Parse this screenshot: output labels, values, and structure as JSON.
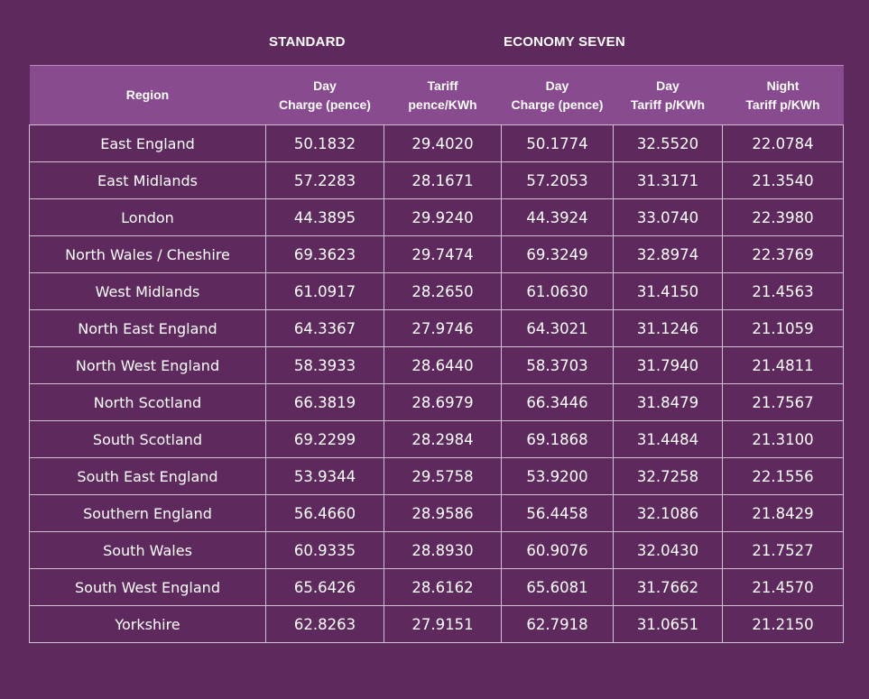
{
  "groups": {
    "standard": "STANDARD",
    "economy_seven": "ECONOMY SEVEN"
  },
  "headers": {
    "region": "Region",
    "std_day": [
      "Day",
      "Charge (pence)"
    ],
    "std_tariff": [
      "Tariff",
      "pence/KWh"
    ],
    "e7_day": [
      "Day",
      "Charge (pence)"
    ],
    "e7_day_tariff": [
      "Day",
      "Tariff p/KWh"
    ],
    "e7_night_tariff": [
      "Night",
      "Tariff p/KWh"
    ]
  },
  "rows": [
    [
      "East England",
      "50.1832",
      "29.4020",
      "50.1774",
      "32.5520",
      "22.0784"
    ],
    [
      "East Midlands",
      "57.2283",
      "28.1671",
      "57.2053",
      "31.3171",
      "21.3540"
    ],
    [
      "London",
      "44.3895",
      "29.9240",
      "44.3924",
      "33.0740",
      "22.3980"
    ],
    [
      "North Wales / Cheshire",
      "69.3623",
      "29.7474",
      "69.3249",
      "32.8974",
      "22.3769"
    ],
    [
      "West Midlands",
      "61.0917",
      "28.2650",
      "61.0630",
      "31.4150",
      "21.4563"
    ],
    [
      "North East England",
      "64.3367",
      "27.9746",
      "64.3021",
      "31.1246",
      "21.1059"
    ],
    [
      "North West England",
      "58.3933",
      "28.6440",
      "58.3703",
      "31.7940",
      "21.4811"
    ],
    [
      "North Scotland",
      "66.3819",
      "28.6979",
      "66.3446",
      "31.8479",
      "21.7567"
    ],
    [
      "South Scotland",
      "69.2299",
      "28.2984",
      "69.1868",
      "31.4484",
      "21.3100"
    ],
    [
      "South East England",
      "53.9344",
      "29.5758",
      "53.9200",
      "32.7258",
      "22.1556"
    ],
    [
      "Southern England",
      "56.4660",
      "28.9586",
      "56.4458",
      "32.1086",
      "21.8429"
    ],
    [
      "South Wales",
      "60.9335",
      "28.8930",
      "60.9076",
      "32.0430",
      "21.7527"
    ],
    [
      "South West England",
      "65.6426",
      "28.6162",
      "65.6081",
      "31.7662",
      "21.4570"
    ],
    [
      "Yorkshire",
      "62.8263",
      "27.9151",
      "62.7918",
      "31.0651",
      "21.2150"
    ]
  ]
}
